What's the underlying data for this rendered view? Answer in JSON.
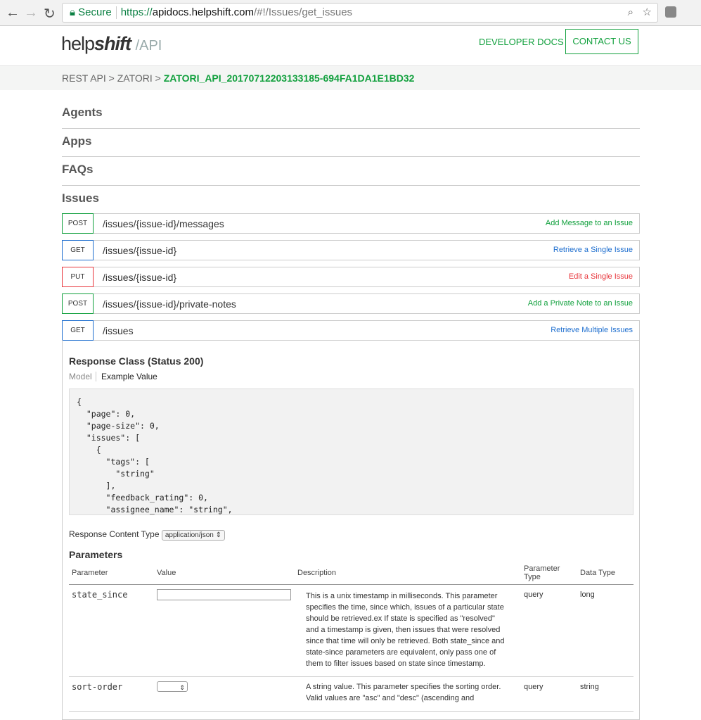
{
  "browser": {
    "secure": "Secure",
    "url_scheme": "https://",
    "url_domain": "apidocs.helpshift.com",
    "url_path": "/#!/Issues/get_issues"
  },
  "header": {
    "logo_help": "help",
    "logo_shift": "shift",
    "logo_api": "/API",
    "developer_docs": "DEVELOPER DOCS",
    "contact_us": "CONTACT US"
  },
  "breadcrumb": {
    "root": "REST API > ZATORI > ",
    "current": "ZATORI_API_20170712203133185-694FA1DA1E1BD32"
  },
  "groups": [
    "Agents",
    "Apps",
    "FAQs",
    "Issues"
  ],
  "endpoints": [
    {
      "method": "POST",
      "path": "/issues/{issue-id}/messages",
      "desc": "Add Message to an Issue",
      "color": "#11a03d"
    },
    {
      "method": "GET",
      "path": "/issues/{issue-id}",
      "desc": "Retrieve a Single Issue",
      "color": "#1f6fcf"
    },
    {
      "method": "PUT",
      "path": "/issues/{issue-id}",
      "desc": "Edit a Single Issue",
      "color": "#e8353b"
    },
    {
      "method": "POST",
      "path": "/issues/{issue-id}/private-notes",
      "desc": "Add a Private Note to an Issue",
      "color": "#11a03d"
    },
    {
      "method": "GET",
      "path": "/issues",
      "desc": "Retrieve Multiple Issues",
      "color": "#1f6fcf"
    }
  ],
  "operation": {
    "response_class": "Response Class (Status 200)",
    "tab_model": "Model",
    "tab_example": "Example Value",
    "example": "{\n  \"page\": 0,\n  \"page-size\": 0,\n  \"issues\": [\n    {\n      \"tags\": [\n        \"string\"\n      ],\n      \"feedback_rating\": 0,\n      \"assignee_name\": \"string\",",
    "content_type_label": "Response Content Type",
    "content_type": "application/json",
    "parameters_title": "Parameters",
    "columns": [
      "Parameter",
      "Value",
      "Description",
      "Parameter Type",
      "Data Type"
    ],
    "params": [
      {
        "name": "state_since",
        "value": "",
        "description": "This is a unix timestamp in milliseconds. This parameter specifies the time, since which, issues of a particular state should be retrieved.ex If state is specified as \"resolved\" and a timestamp is given, then issues that were resolved since that time will only be retrieved. Both state_since and state-since parameters are equivalent, only pass one of them to filter issues based on state since timestamp.",
        "param_type": "query",
        "data_type": "long"
      },
      {
        "name": "sort-order",
        "value": "",
        "description": "A string value. This parameter specifies the sorting order. Valid values are \"asc\" and \"desc\" (ascending and",
        "param_type": "query",
        "data_type": "string"
      }
    ]
  }
}
